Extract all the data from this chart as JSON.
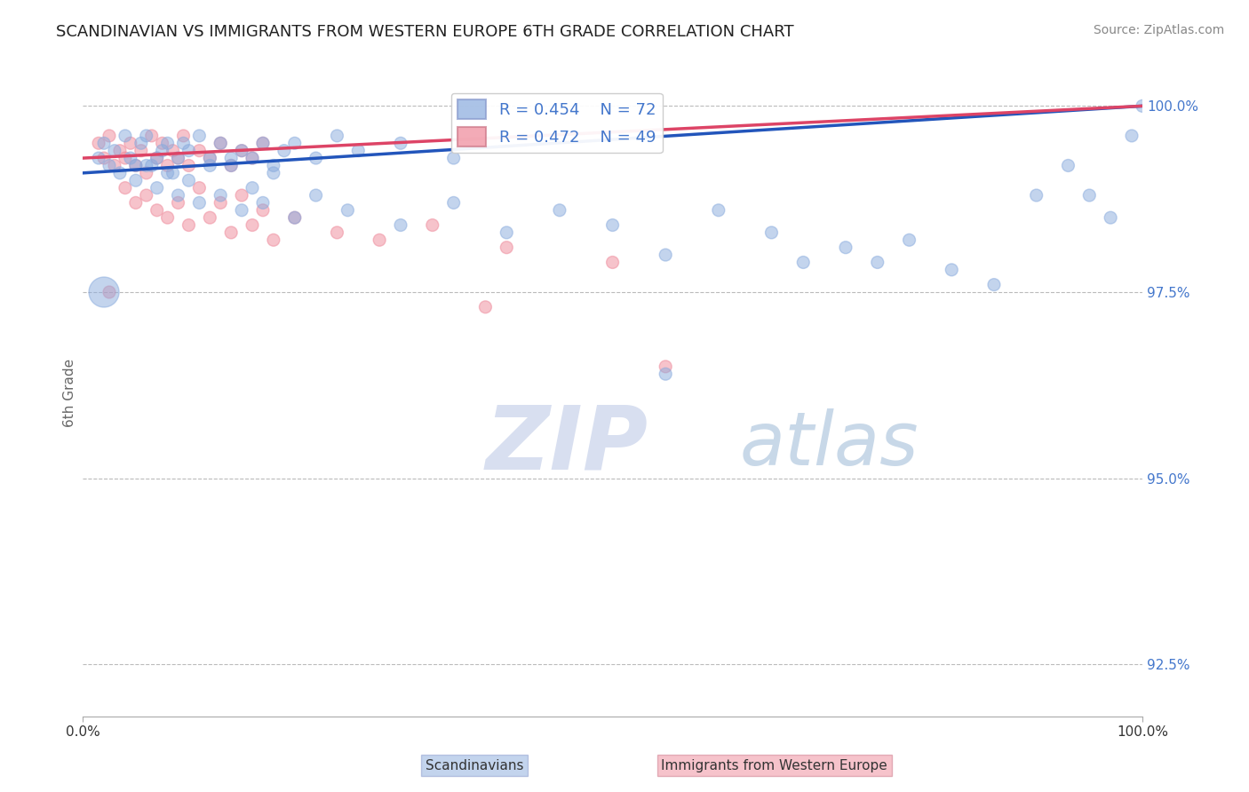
{
  "title": "SCANDINAVIAN VS IMMIGRANTS FROM WESTERN EUROPE 6TH GRADE CORRELATION CHART",
  "source": "Source: ZipAtlas.com",
  "ylabel": "6th Grade",
  "ylabel_color": "#666666",
  "right_yticks": [
    100.0,
    97.5,
    95.0,
    92.5
  ],
  "right_ytick_labels": [
    "100.0%",
    "97.5%",
    "95.0%",
    "92.5%"
  ],
  "ytick_color": "#4477cc",
  "grid_color": "#bbbbbb",
  "watermark_top": "ZIP",
  "watermark_bot": "atlas",
  "watermark_color_zip": "#d8dff0",
  "watermark_color_atlas": "#c8d8e8",
  "legend_r1": "R = 0.454",
  "legend_n1": "N = 72",
  "legend_r2": "R = 0.472",
  "legend_n2": "N = 49",
  "blue_color": "#88aadd",
  "pink_color": "#ee8899",
  "blue_line_color": "#2255bb",
  "pink_line_color": "#dd4466",
  "xmin": 0.0,
  "xmax": 100.0,
  "ymin": 91.8,
  "ymax": 100.5,
  "title_fontsize": 13,
  "source_fontsize": 10,
  "scan_x": [
    1.5,
    2.0,
    2.5,
    3.0,
    3.5,
    4.0,
    4.5,
    5.0,
    5.5,
    6.0,
    6.5,
    7.0,
    7.5,
    8.0,
    8.5,
    9.0,
    9.5,
    10.0,
    11.0,
    12.0,
    13.0,
    14.0,
    15.0,
    16.0,
    17.0,
    18.0,
    19.0,
    20.0,
    22.0,
    24.0,
    26.0,
    30.0,
    35.0,
    5.0,
    6.0,
    7.0,
    8.0,
    9.0,
    10.0,
    11.0,
    12.0,
    13.0,
    14.0,
    15.0,
    16.0,
    17.0,
    18.0,
    20.0,
    22.0,
    25.0,
    30.0,
    35.0,
    40.0,
    45.0,
    50.0,
    55.0,
    60.0,
    65.0,
    68.0,
    72.0,
    75.0,
    78.0,
    82.0,
    86.0,
    90.0,
    93.0,
    95.0,
    97.0,
    99.0,
    100.0,
    2.0,
    55.0
  ],
  "scan_y": [
    99.3,
    99.5,
    99.2,
    99.4,
    99.1,
    99.6,
    99.3,
    99.2,
    99.5,
    99.6,
    99.2,
    99.3,
    99.4,
    99.5,
    99.1,
    99.3,
    99.5,
    99.4,
    99.6,
    99.3,
    99.5,
    99.2,
    99.4,
    99.3,
    99.5,
    99.2,
    99.4,
    99.5,
    99.3,
    99.6,
    99.4,
    99.5,
    99.3,
    99.0,
    99.2,
    98.9,
    99.1,
    98.8,
    99.0,
    98.7,
    99.2,
    98.8,
    99.3,
    98.6,
    98.9,
    98.7,
    99.1,
    98.5,
    98.8,
    98.6,
    98.4,
    98.7,
    98.3,
    98.6,
    98.4,
    98.0,
    98.6,
    98.3,
    97.9,
    98.1,
    97.9,
    98.2,
    97.8,
    97.6,
    98.8,
    99.2,
    98.8,
    98.5,
    99.6,
    100.0,
    97.5,
    96.4
  ],
  "scan_s": [
    100,
    100,
    100,
    100,
    100,
    100,
    100,
    100,
    100,
    100,
    100,
    100,
    100,
    100,
    100,
    100,
    100,
    100,
    100,
    100,
    100,
    100,
    100,
    100,
    100,
    100,
    100,
    100,
    100,
    100,
    100,
    100,
    100,
    100,
    100,
    100,
    100,
    100,
    100,
    100,
    100,
    100,
    100,
    100,
    100,
    100,
    100,
    100,
    100,
    100,
    100,
    100,
    100,
    100,
    100,
    100,
    100,
    100,
    100,
    100,
    100,
    100,
    100,
    100,
    100,
    100,
    100,
    100,
    100,
    100,
    600,
    100
  ],
  "imm_x": [
    1.5,
    2.0,
    2.5,
    3.0,
    3.5,
    4.0,
    4.5,
    5.0,
    5.5,
    6.0,
    6.5,
    7.0,
    7.5,
    8.0,
    8.5,
    9.0,
    9.5,
    10.0,
    11.0,
    12.0,
    13.0,
    14.0,
    15.0,
    16.0,
    17.0,
    4.0,
    5.0,
    6.0,
    7.0,
    8.0,
    9.0,
    10.0,
    11.0,
    12.0,
    13.0,
    14.0,
    15.0,
    16.0,
    17.0,
    18.0,
    20.0,
    24.0,
    28.0,
    33.0,
    40.0,
    50.0,
    2.5,
    38.0,
    55.0
  ],
  "imm_y": [
    99.5,
    99.3,
    99.6,
    99.2,
    99.4,
    99.3,
    99.5,
    99.2,
    99.4,
    99.1,
    99.6,
    99.3,
    99.5,
    99.2,
    99.4,
    99.3,
    99.6,
    99.2,
    99.4,
    99.3,
    99.5,
    99.2,
    99.4,
    99.3,
    99.5,
    98.9,
    98.7,
    98.8,
    98.6,
    98.5,
    98.7,
    98.4,
    98.9,
    98.5,
    98.7,
    98.3,
    98.8,
    98.4,
    98.6,
    98.2,
    98.5,
    98.3,
    98.2,
    98.4,
    98.1,
    97.9,
    97.5,
    97.3,
    96.5
  ],
  "imm_s": [
    100,
    100,
    100,
    100,
    100,
    100,
    100,
    100,
    100,
    100,
    100,
    100,
    100,
    100,
    100,
    100,
    100,
    100,
    100,
    100,
    100,
    100,
    100,
    100,
    100,
    100,
    100,
    100,
    100,
    100,
    100,
    100,
    100,
    100,
    100,
    100,
    100,
    100,
    100,
    100,
    100,
    100,
    100,
    100,
    100,
    100,
    100,
    100,
    100
  ],
  "scan_line_x": [
    0,
    100
  ],
  "scan_line_y": [
    99.1,
    100.0
  ],
  "imm_line_x": [
    0,
    100
  ],
  "imm_line_y": [
    99.3,
    100.0
  ]
}
